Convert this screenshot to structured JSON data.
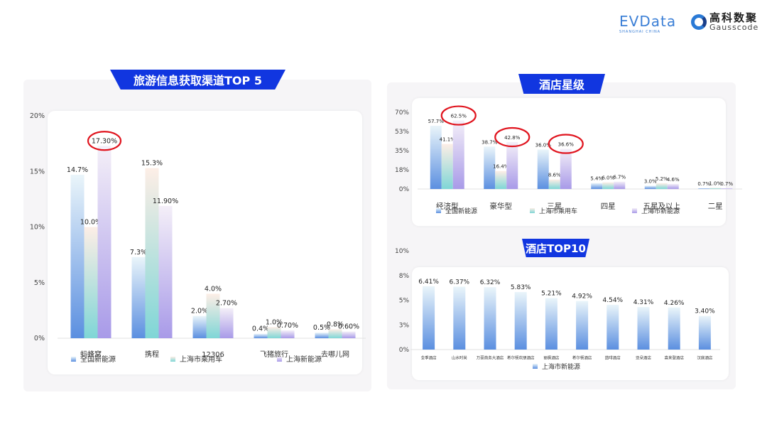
{
  "logos": {
    "evdata": "EVData",
    "evdata_sub": "SHANGHAI CHINA",
    "gauss_cn": "高科数聚",
    "gauss_en": "Gausscode"
  },
  "colors": {
    "banner": "#1136e0",
    "series": [
      "#5b8fe0",
      "#7fd6d6",
      "#a89ae8"
    ],
    "highlight": "#e0141e"
  },
  "chart_data": [
    {
      "type": "bar",
      "title": "旅游信息获取渠道TOP 5",
      "categories": [
        "蚂蜂窝",
        "携程",
        "12306",
        "飞猪旅行",
        "去哪儿网"
      ],
      "ylim": [
        0,
        20
      ],
      "yticks": [
        "0%",
        "5%",
        "10%",
        "15%",
        "20%"
      ],
      "grid": false,
      "legend": "bottom",
      "series": [
        {
          "name": "全国新能源",
          "values": [
            14.7,
            7.3,
            2.0,
            0.4,
            0.5
          ],
          "labels": [
            "14.7%",
            "7.3%",
            "2.0%",
            "0.4%",
            "0.5%"
          ]
        },
        {
          "name": "上海市乘用车",
          "values": [
            10.0,
            15.3,
            4.0,
            1.0,
            0.8
          ],
          "labels": [
            "10.0%",
            "15.3%",
            "4.0%",
            "1.0%",
            "0.8%"
          ]
        },
        {
          "name": "上海新能源",
          "values": [
            17.3,
            11.9,
            2.7,
            0.7,
            0.6
          ],
          "labels": [
            "17.30%",
            "11.90%",
            "2.70%",
            "0.70%",
            "0.60%"
          ]
        }
      ],
      "highlighted": [
        {
          "series": 2,
          "index": 0
        }
      ]
    },
    {
      "type": "bar",
      "title": "酒店星级",
      "categories": [
        "经济型",
        "豪华型",
        "三星",
        "四星",
        "五星及以上",
        "二星"
      ],
      "ylim": [
        0,
        70
      ],
      "yticks": [
        "0%",
        "18%",
        "35%",
        "53%",
        "70%"
      ],
      "grid": false,
      "legend": "bottom",
      "series": [
        {
          "name": "全国新能源",
          "values": [
            57.7,
            38.7,
            36.0,
            5.4,
            3.0,
            0.7
          ],
          "labels": [
            "57.7%",
            "38.7%",
            "36.0%",
            "5.4%",
            "3.0%",
            "0.7%"
          ]
        },
        {
          "name": "上海市乘用车",
          "values": [
            41.1,
            16.4,
            8.6,
            6.0,
            5.2,
            1.0
          ],
          "labels": [
            "41.1%",
            "16.4%",
            "8.6%",
            "6.0%",
            "5.2%",
            "1.0%"
          ]
        },
        {
          "name": "上海市新能源",
          "values": [
            62.5,
            42.8,
            36.6,
            6.7,
            4.6,
            0.7
          ],
          "labels": [
            "62.5%",
            "42.8%",
            "36.6%",
            "6.7%",
            "4.6%",
            "0.7%"
          ]
        }
      ],
      "highlighted": [
        {
          "series": 2,
          "index": 0
        },
        {
          "series": 2,
          "index": 1
        },
        {
          "series": 2,
          "index": 2
        }
      ]
    },
    {
      "type": "bar",
      "title": "酒店TOP10",
      "categories": [
        "全季酒店",
        "山水时尚",
        "万豪商务大酒店",
        "希尔顿欢朋酒店",
        "丽枫酒店",
        "希尔顿酒店",
        "喆啡酒店",
        "亚朵酒店",
        "喜来登酒店",
        "汉庭酒店"
      ],
      "ylim": [
        0,
        10
      ],
      "yticks": [
        "0%",
        "3%",
        "5%",
        "8%",
        "10%"
      ],
      "grid": false,
      "legend": "bottom",
      "series": [
        {
          "name": "上海市新能源",
          "values": [
            6.41,
            6.37,
            6.32,
            5.83,
            5.21,
            4.92,
            4.54,
            4.31,
            4.26,
            3.4
          ],
          "labels": [
            "6.41%",
            "6.37%",
            "6.32%",
            "5.83%",
            "5.21%",
            "4.92%",
            "4.54%",
            "4.31%",
            "4.26%",
            "3.40%"
          ]
        }
      ],
      "highlighted": []
    }
  ]
}
